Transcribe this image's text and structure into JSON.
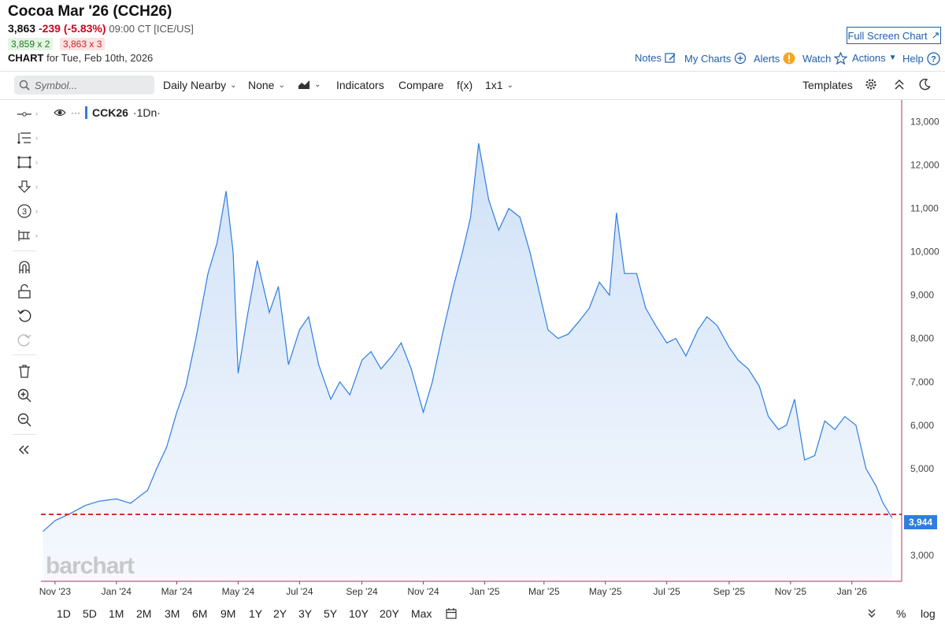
{
  "header": {
    "title": "Cocoa Mar '26 (CCH26)",
    "price": "3,863",
    "change": "-239 (-5.83%)",
    "time": "09:00 CT [ICE/US]",
    "bid": "3,859 x 2",
    "ask": "3,863 x 3",
    "chart_label": "CHART",
    "chart_for": "for Tue, Feb 10th, 2026",
    "full_screen": "Full Screen Chart"
  },
  "top_links": [
    "Notes",
    "My Charts",
    "Alerts",
    "Watch",
    "Actions",
    "Help"
  ],
  "toolbar": {
    "symbol_placeholder": "Symbol...",
    "aggregation": "Daily Nearby",
    "overlay": "None",
    "indicators": "Indicators",
    "compare": "Compare",
    "fx": "f(x)",
    "layout": "1x1",
    "templates": "Templates"
  },
  "legend": {
    "symbol": "CCK26",
    "interval": "·1Dn·"
  },
  "watermark": "barchart",
  "periods": [
    "1D",
    "5D",
    "1M",
    "2M",
    "3M",
    "6M",
    "9M",
    "1Y",
    "2Y",
    "3Y",
    "5Y",
    "10Y",
    "20Y",
    "Max"
  ],
  "bottom_right": {
    "percent": "%",
    "log": "log"
  },
  "colors": {
    "line": "#2f7de1",
    "area_top": "#cfe1f7",
    "ref_line": "#d32f2f",
    "axis": "#b0306a"
  },
  "chart_data": {
    "type": "area",
    "ylim": [
      2400,
      13500
    ],
    "y_ticks": [
      "13,000",
      "12,000",
      "11,000",
      "10,000",
      "9,000",
      "8,000",
      "7,000",
      "6,000",
      "5,000",
      "3,000"
    ],
    "x_ticks": [
      "Nov '23",
      "Jan '24",
      "Mar '24",
      "May '24",
      "Jul '24",
      "Sep '24",
      "Nov '24",
      "Jan '25",
      "Mar '25",
      "May '25",
      "Jul '25",
      "Sep '25",
      "Nov '25",
      "Jan '26"
    ],
    "reference_line": {
      "value": 3944,
      "label": "3,944"
    },
    "series": [
      {
        "x": [
          "2023-10-20",
          "2023-11-01",
          "2023-11-15",
          "2023-12-01",
          "2023-12-15",
          "2024-01-01",
          "2024-01-15",
          "2024-02-01",
          "2024-02-10",
          "2024-02-20",
          "2024-03-01",
          "2024-03-10",
          "2024-03-20",
          "2024-04-01",
          "2024-04-10",
          "2024-04-19",
          "2024-04-26",
          "2024-05-01",
          "2024-05-10",
          "2024-05-20",
          "2024-06-01",
          "2024-06-10",
          "2024-06-20",
          "2024-07-01",
          "2024-07-10",
          "2024-07-20",
          "2024-08-01",
          "2024-08-10",
          "2024-08-20",
          "2024-09-01",
          "2024-09-10",
          "2024-09-20",
          "2024-10-01",
          "2024-10-10",
          "2024-10-20",
          "2024-11-01",
          "2024-11-10",
          "2024-11-20",
          "2024-12-01",
          "2024-12-10",
          "2024-12-18",
          "2024-12-26",
          "2025-01-05",
          "2025-01-15",
          "2025-01-25",
          "2025-02-05",
          "2025-02-15",
          "2025-02-25",
          "2025-03-05",
          "2025-03-15",
          "2025-03-25",
          "2025-04-05",
          "2025-04-15",
          "2025-04-25",
          "2025-05-05",
          "2025-05-12",
          "2025-05-20",
          "2025-06-01",
          "2025-06-10",
          "2025-06-20",
          "2025-07-01",
          "2025-07-10",
          "2025-07-20",
          "2025-08-01",
          "2025-08-10",
          "2025-08-20",
          "2025-09-01",
          "2025-09-10",
          "2025-09-20",
          "2025-10-01",
          "2025-10-10",
          "2025-10-20",
          "2025-10-28",
          "2025-11-05",
          "2025-11-15",
          "2025-11-25",
          "2025-12-05",
          "2025-12-15",
          "2025-12-25",
          "2026-01-05",
          "2026-01-15",
          "2026-01-25",
          "2026-02-01",
          "2026-02-10"
        ],
        "values": [
          3550,
          3800,
          3950,
          4150,
          4250,
          4300,
          4200,
          4500,
          5000,
          5500,
          6300,
          6900,
          8000,
          9500,
          10200,
          11400,
          10000,
          7200,
          8500,
          9800,
          8600,
          9200,
          7400,
          8200,
          8500,
          7400,
          6600,
          7000,
          6700,
          7500,
          7700,
          7300,
          7600,
          7900,
          7300,
          6300,
          7000,
          8100,
          9200,
          10000,
          10800,
          12500,
          11200,
          10500,
          11000,
          10800,
          10000,
          9000,
          8200,
          8000,
          8100,
          8400,
          8700,
          9300,
          9000,
          10900,
          9500,
          9500,
          8700,
          8300,
          7900,
          8000,
          7600,
          8200,
          8500,
          8300,
          7800,
          7500,
          7300,
          6900,
          6200,
          5900,
          6000,
          6600,
          5200,
          5300,
          6100,
          5900,
          6200,
          6000,
          5000,
          4600,
          4200,
          3863
        ]
      }
    ]
  }
}
